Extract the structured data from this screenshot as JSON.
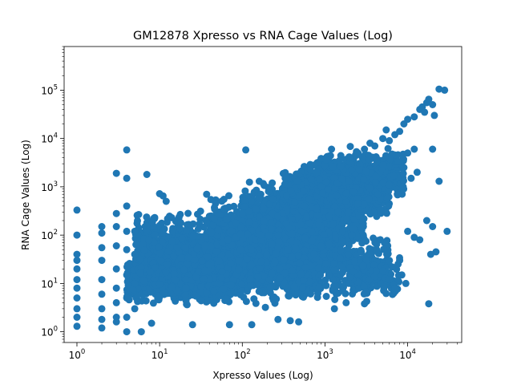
{
  "chart_data": {
    "type": "scatter",
    "title": "GM12878 Xpresso vs RNA Cage Values (Log)",
    "xlabel": "Xpresso Values (Log)",
    "ylabel": "RNA Cage Values (Log)",
    "xscale": "log",
    "yscale": "log",
    "xlim": [
      0.7,
      45000
    ],
    "ylim": [
      0.6,
      800000
    ],
    "grid": false,
    "legend": "none",
    "marker_color": "#1f77b4",
    "x_ticks": [
      {
        "value": 1,
        "base": "10",
        "exp": "0"
      },
      {
        "value": 10,
        "base": "10",
        "exp": "1"
      },
      {
        "value": 100,
        "base": "10",
        "exp": "2"
      },
      {
        "value": 1000,
        "base": "10",
        "exp": "3"
      },
      {
        "value": 10000,
        "base": "10",
        "exp": "4"
      }
    ],
    "y_ticks": [
      {
        "value": 1,
        "base": "10",
        "exp": "0"
      },
      {
        "value": 10,
        "base": "10",
        "exp": "1"
      },
      {
        "value": 100,
        "base": "10",
        "exp": "2"
      },
      {
        "value": 1000,
        "base": "10",
        "exp": "3"
      },
      {
        "value": 10000,
        "base": "10",
        "exp": "4"
      },
      {
        "value": 100000,
        "base": "10",
        "exp": "5"
      }
    ],
    "points": [
      [
        1,
        330
      ],
      [
        1,
        100
      ],
      [
        1,
        40
      ],
      [
        1,
        30
      ],
      [
        1,
        20
      ],
      [
        1,
        12
      ],
      [
        1,
        8
      ],
      [
        1,
        5
      ],
      [
        1,
        3
      ],
      [
        1,
        2
      ],
      [
        1,
        1.3
      ],
      [
        2,
        150
      ],
      [
        2,
        110
      ],
      [
        2,
        55
      ],
      [
        2,
        30
      ],
      [
        2,
        12
      ],
      [
        2,
        6
      ],
      [
        2,
        3
      ],
      [
        2,
        1.8
      ],
      [
        2,
        1.2
      ],
      [
        3,
        1900
      ],
      [
        3,
        280
      ],
      [
        3,
        150
      ],
      [
        3,
        60
      ],
      [
        3,
        20
      ],
      [
        3,
        8
      ],
      [
        3,
        4
      ],
      [
        3,
        2
      ],
      [
        3,
        1.6
      ],
      [
        4,
        5800
      ],
      [
        4,
        1500
      ],
      [
        4,
        400
      ],
      [
        4,
        120
      ],
      [
        4,
        50
      ],
      [
        4,
        15
      ],
      [
        4,
        5
      ],
      [
        4,
        2
      ],
      [
        4,
        1.0
      ],
      [
        5,
        120
      ],
      [
        5,
        40
      ],
      [
        5,
        10
      ],
      [
        5,
        3
      ],
      [
        6,
        1.0
      ],
      [
        7,
        1800
      ],
      [
        7,
        130
      ],
      [
        8,
        1.5
      ],
      [
        10,
        720
      ],
      [
        11,
        650
      ],
      [
        12,
        500
      ],
      [
        14,
        230
      ],
      [
        18,
        180
      ],
      [
        25,
        1.4
      ],
      [
        37,
        700
      ],
      [
        60,
        550
      ],
      [
        70,
        1.4
      ],
      [
        110,
        5800
      ],
      [
        130,
        1.4
      ],
      [
        160,
        1300
      ],
      [
        190,
        3.2
      ],
      [
        230,
        1200
      ],
      [
        270,
        1.8
      ],
      [
        330,
        1500
      ],
      [
        380,
        1.7
      ],
      [
        480,
        1.6
      ],
      [
        430,
        1500
      ],
      [
        460,
        1300
      ],
      [
        800,
        2000
      ],
      [
        1300,
        3
      ],
      [
        1800,
        4
      ],
      [
        2200,
        800
      ],
      [
        2500,
        450
      ],
      [
        3000,
        3.8
      ],
      [
        4200,
        50
      ],
      [
        5000,
        18
      ],
      [
        6000,
        12
      ],
      [
        6500,
        22
      ],
      [
        7000,
        8
      ],
      [
        1200,
        6000
      ],
      [
        1500,
        3500
      ],
      [
        2000,
        4000
      ],
      [
        2500,
        5000
      ],
      [
        3000,
        6000
      ],
      [
        3500,
        8000
      ],
      [
        4000,
        7000
      ],
      [
        5000,
        10000
      ],
      [
        5500,
        15000
      ],
      [
        6000,
        9000
      ],
      [
        7000,
        12000
      ],
      [
        8000,
        14000
      ],
      [
        9000,
        20000
      ],
      [
        10000,
        25000
      ],
      [
        12000,
        28000
      ],
      [
        14000,
        40000
      ],
      [
        15000,
        45000
      ],
      [
        16000,
        35000
      ],
      [
        17000,
        55000
      ],
      [
        18000,
        65000
      ],
      [
        20000,
        50000
      ],
      [
        21000,
        30000
      ],
      [
        24000,
        105000
      ],
      [
        28000,
        100000
      ],
      [
        10000,
        5000
      ],
      [
        12000,
        6000
      ],
      [
        13000,
        2000
      ],
      [
        9000,
        2500
      ],
      [
        11000,
        1500
      ],
      [
        20000,
        6000
      ],
      [
        18000,
        3.8
      ],
      [
        22000,
        45
      ],
      [
        19000,
        40
      ],
      [
        24000,
        1300
      ],
      [
        30000,
        120
      ],
      [
        17000,
        200
      ],
      [
        20000,
        150
      ],
      [
        14000,
        80
      ],
      [
        12000,
        90
      ],
      [
        10000,
        120
      ],
      [
        8000,
        30
      ],
      [
        9500,
        10
      ],
      [
        8500,
        15
      ]
    ],
    "density_bands": [
      {
        "x": [
          4,
          90
        ],
        "y": [
          3,
          45
        ],
        "n": 900
      },
      {
        "x": [
          6,
          300
        ],
        "y": [
          6,
          150
        ],
        "n": 1100
      },
      {
        "x": [
          20,
          900
        ],
        "y": [
          3,
          120
        ],
        "n": 900
      },
      {
        "x": [
          40,
          1500
        ],
        "y": [
          15,
          700
        ],
        "n": 1000
      },
      {
        "x": [
          100,
          3000
        ],
        "y": [
          40,
          1500
        ],
        "n": 900
      },
      {
        "x": [
          300,
          6000
        ],
        "y": [
          150,
          4000
        ],
        "n": 700
      },
      {
        "x": [
          800,
          9000
        ],
        "y": [
          400,
          8000
        ],
        "n": 450
      },
      {
        "x": [
          5,
          400
        ],
        "y": [
          8,
          500
        ],
        "n": 600
      },
      {
        "x": [
          150,
          6000
        ],
        "y": [
          5,
          200
        ],
        "n": 400
      },
      {
        "x": [
          1000,
          8000
        ],
        "y": [
          3,
          60
        ],
        "n": 150
      }
    ]
  }
}
